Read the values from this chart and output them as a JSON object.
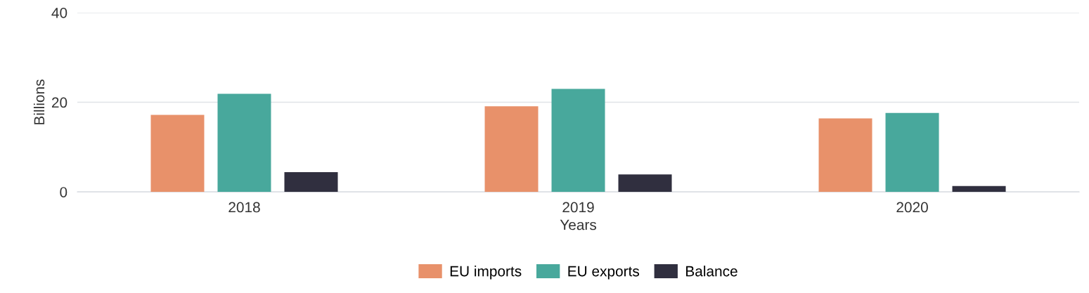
{
  "chart_data": {
    "type": "bar",
    "xlabel": "Years",
    "ylabel": "Billions",
    "categories": [
      "2018",
      "2019",
      "2020"
    ],
    "series": [
      {
        "name": "EU imports",
        "color": "#e8916a",
        "values": [
          17.2,
          19.1,
          16.4
        ]
      },
      {
        "name": "EU exports",
        "color": "#48a89c",
        "values": [
          21.9,
          23.0,
          17.6
        ]
      },
      {
        "name": "Balance",
        "color": "#302f3f",
        "values": [
          4.4,
          3.9,
          1.3
        ]
      }
    ],
    "ylim": [
      0,
      40
    ],
    "yticks": [
      0,
      20,
      40
    ],
    "grid": "y",
    "legend": "bottom"
  }
}
